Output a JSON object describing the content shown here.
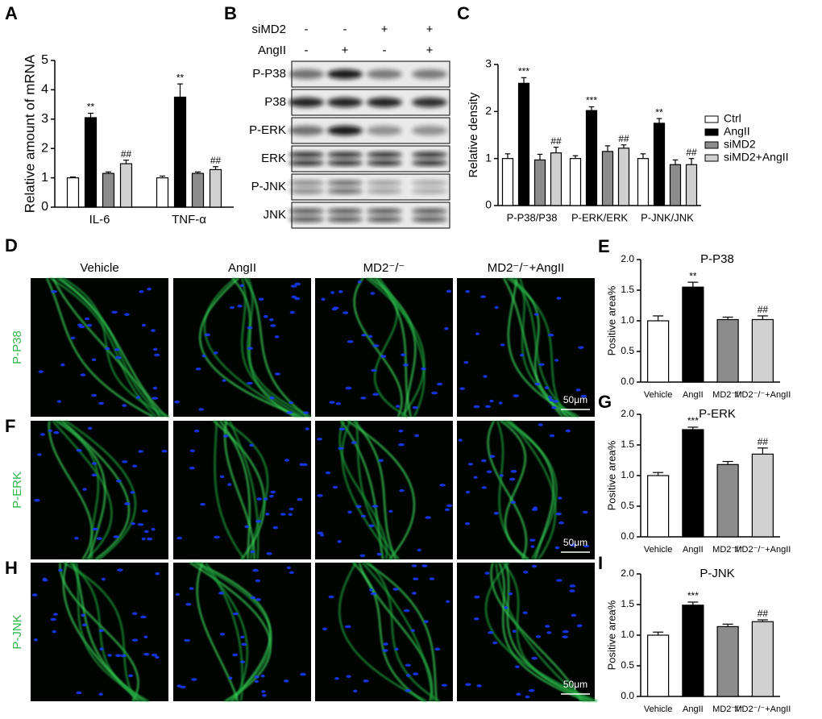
{
  "panel_labels": [
    "A",
    "B",
    "C",
    "D",
    "E",
    "F",
    "G",
    "H",
    "I"
  ],
  "chart_data": [
    {
      "type": "bar",
      "ylabel": "Relative amount of mRNA",
      "categories": [
        "IL-6",
        "TNF-α"
      ],
      "ylim": [
        0,
        5
      ],
      "yticks": [
        0,
        1,
        2,
        3,
        4,
        5
      ],
      "series": [
        {
          "color": "#ffffff",
          "values": [
            1.0,
            1.0
          ],
          "errors": [
            0.03,
            0.06
          ],
          "annotations": [
            null,
            null
          ]
        },
        {
          "color": "#000000",
          "values": [
            3.05,
            3.75
          ],
          "errors": [
            0.15,
            0.45
          ],
          "annotations": [
            "**",
            "**"
          ]
        },
        {
          "color": "#8c8c8c",
          "values": [
            1.15,
            1.15
          ],
          "errors": [
            0.05,
            0.05
          ],
          "annotations": [
            null,
            null
          ]
        },
        {
          "color": "#d0d0d0",
          "values": [
            1.48,
            1.28
          ],
          "errors": [
            0.12,
            0.1
          ],
          "annotations": [
            "##",
            "##"
          ]
        }
      ]
    },
    {
      "type": "bar",
      "ylabel": "Relative density",
      "categories": [
        "P-P38/P38",
        "P-ERK/ERK",
        "P-JNK/JNK"
      ],
      "ylim": [
        0,
        3
      ],
      "yticks": [
        0,
        1,
        2,
        3
      ],
      "legend": "right",
      "series": [
        {
          "name": "Ctrl",
          "color": "#ffffff",
          "values": [
            1.0,
            1.0,
            1.0
          ],
          "errors": [
            0.1,
            0.06,
            0.1
          ],
          "annotations": [
            null,
            null,
            null
          ]
        },
        {
          "name": "AngII",
          "color": "#000000",
          "values": [
            2.6,
            2.02,
            1.75
          ],
          "errors": [
            0.12,
            0.08,
            0.1
          ],
          "annotations": [
            "***",
            "***",
            "**"
          ]
        },
        {
          "name": "siMD2",
          "color": "#8c8c8c",
          "values": [
            0.97,
            1.15,
            0.87
          ],
          "errors": [
            0.12,
            0.12,
            0.1
          ],
          "annotations": [
            null,
            null,
            null
          ]
        },
        {
          "name": "siMD2+AngII",
          "color": "#d0d0d0",
          "values": [
            1.12,
            1.22,
            0.87
          ],
          "errors": [
            0.12,
            0.07,
            0.13
          ],
          "annotations": [
            "##",
            "##",
            "##"
          ]
        }
      ]
    },
    {
      "type": "bar",
      "title": "P-P38",
      "ylabel": "Positive area%",
      "categories": [
        "Vehicle",
        "AngII",
        "MD2⁻/⁻",
        "MD2⁻/⁻+AngII"
      ],
      "ylim": [
        0,
        2
      ],
      "yticks": [
        {
          "value": 0,
          "label": "0.0"
        },
        0.5,
        {
          "value": 1,
          "label": "1.0"
        },
        1.5,
        {
          "value": 2,
          "label": "2.0"
        }
      ],
      "colors": [
        "#ffffff",
        "#000000",
        "#8c8c8c",
        "#d0d0d0"
      ],
      "values": [
        1.0,
        1.55,
        1.02,
        1.02
      ],
      "errors": [
        0.08,
        0.08,
        0.04,
        0.06
      ],
      "annotations": [
        null,
        "**",
        null,
        "##"
      ]
    },
    {
      "type": "bar",
      "title": "P-ERK",
      "ylabel": "Positive area%",
      "categories": [
        "Vehicle",
        "AngII",
        "MD2⁻/⁻",
        "MD2⁻/⁻+AngII"
      ],
      "ylim": [
        0,
        2
      ],
      "yticks": [
        {
          "value": 0,
          "label": "0.0"
        },
        0.5,
        {
          "value": 1,
          "label": "1.0"
        },
        1.5,
        {
          "value": 2,
          "label": "2.0"
        }
      ],
      "colors": [
        "#ffffff",
        "#000000",
        "#8c8c8c",
        "#d0d0d0"
      ],
      "values": [
        1.0,
        1.75,
        1.18,
        1.35
      ],
      "errors": [
        0.05,
        0.04,
        0.05,
        0.1
      ],
      "annotations": [
        null,
        "***",
        null,
        "##"
      ]
    },
    {
      "type": "bar",
      "title": "P-JNK",
      "ylabel": "Positive area%",
      "categories": [
        "Vehicle",
        "AngII",
        "MD2⁻/⁻",
        "MD2⁻/⁻+AngII"
      ],
      "ylim": [
        0,
        2
      ],
      "yticks": [
        {
          "value": 0,
          "label": "0.0"
        },
        0.5,
        {
          "value": 1,
          "label": "1.0"
        },
        1.5,
        {
          "value": 2,
          "label": "2.0"
        }
      ],
      "colors": [
        "#ffffff",
        "#000000",
        "#8c8c8c",
        "#d0d0d0"
      ],
      "values": [
        1.0,
        1.49,
        1.14,
        1.22
      ],
      "errors": [
        0.05,
        0.05,
        0.04,
        0.03
      ],
      "annotations": [
        null,
        "***",
        null,
        "##"
      ]
    }
  ],
  "blot": {
    "conditions": [
      {
        "name": "siMD2",
        "signs": [
          "-",
          "-",
          "+",
          "+"
        ]
      },
      {
        "name": "AngII",
        "signs": [
          "-",
          "+",
          "-",
          "+"
        ]
      }
    ],
    "bands": [
      "P-P38",
      "P38",
      "P-ERK",
      "ERK",
      "P-JNK",
      "JNK"
    ]
  },
  "micrographs": {
    "columns": [
      "Vehicle",
      "AngII",
      "MD2⁻/⁻",
      "MD2⁻/⁻+AngII"
    ],
    "rows": [
      "P-P38",
      "P-ERK",
      "P-JNK"
    ],
    "scale_bar": "50μm"
  }
}
